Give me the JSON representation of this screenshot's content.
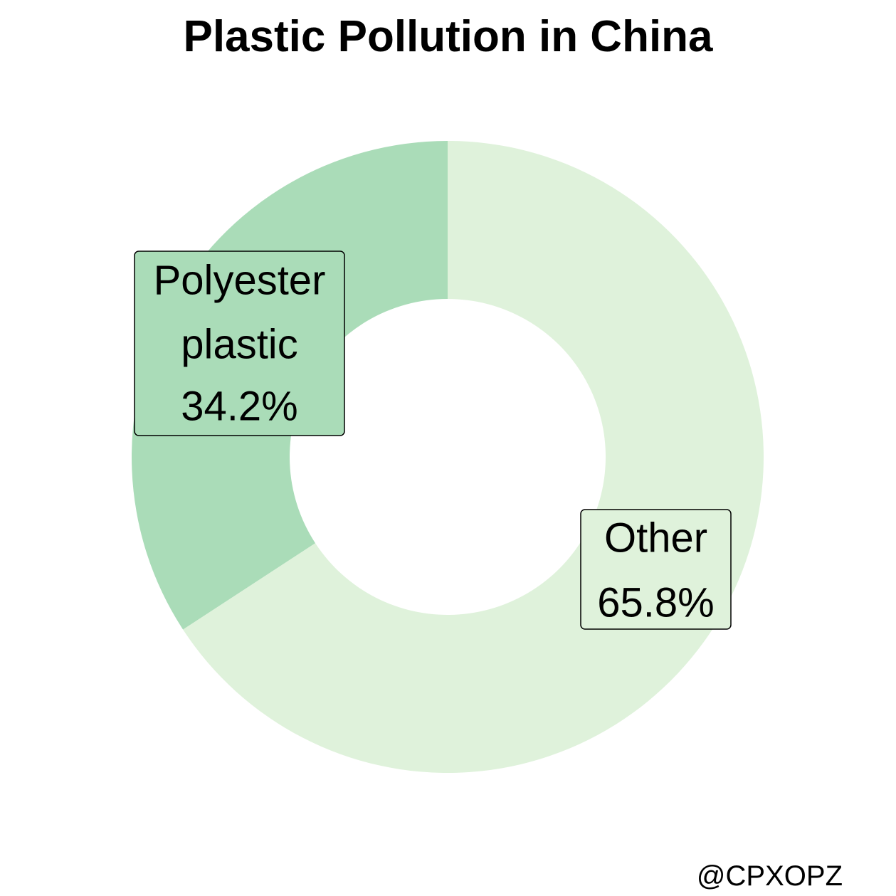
{
  "chart_data": {
    "type": "pie",
    "subtype": "donut",
    "title": "Plastic Pollution in China",
    "slices": [
      {
        "label": "Polyester plastic",
        "value": 34.2,
        "display": [
          "Polyester",
          "plastic",
          "34.2%"
        ],
        "color": "#aadcb8"
      },
      {
        "label": "Other",
        "value": 65.8,
        "display": [
          "Other",
          "65.8%"
        ],
        "color": "#dff2db"
      }
    ],
    "legend": "none"
  },
  "watermark": "@CPXOPZ"
}
